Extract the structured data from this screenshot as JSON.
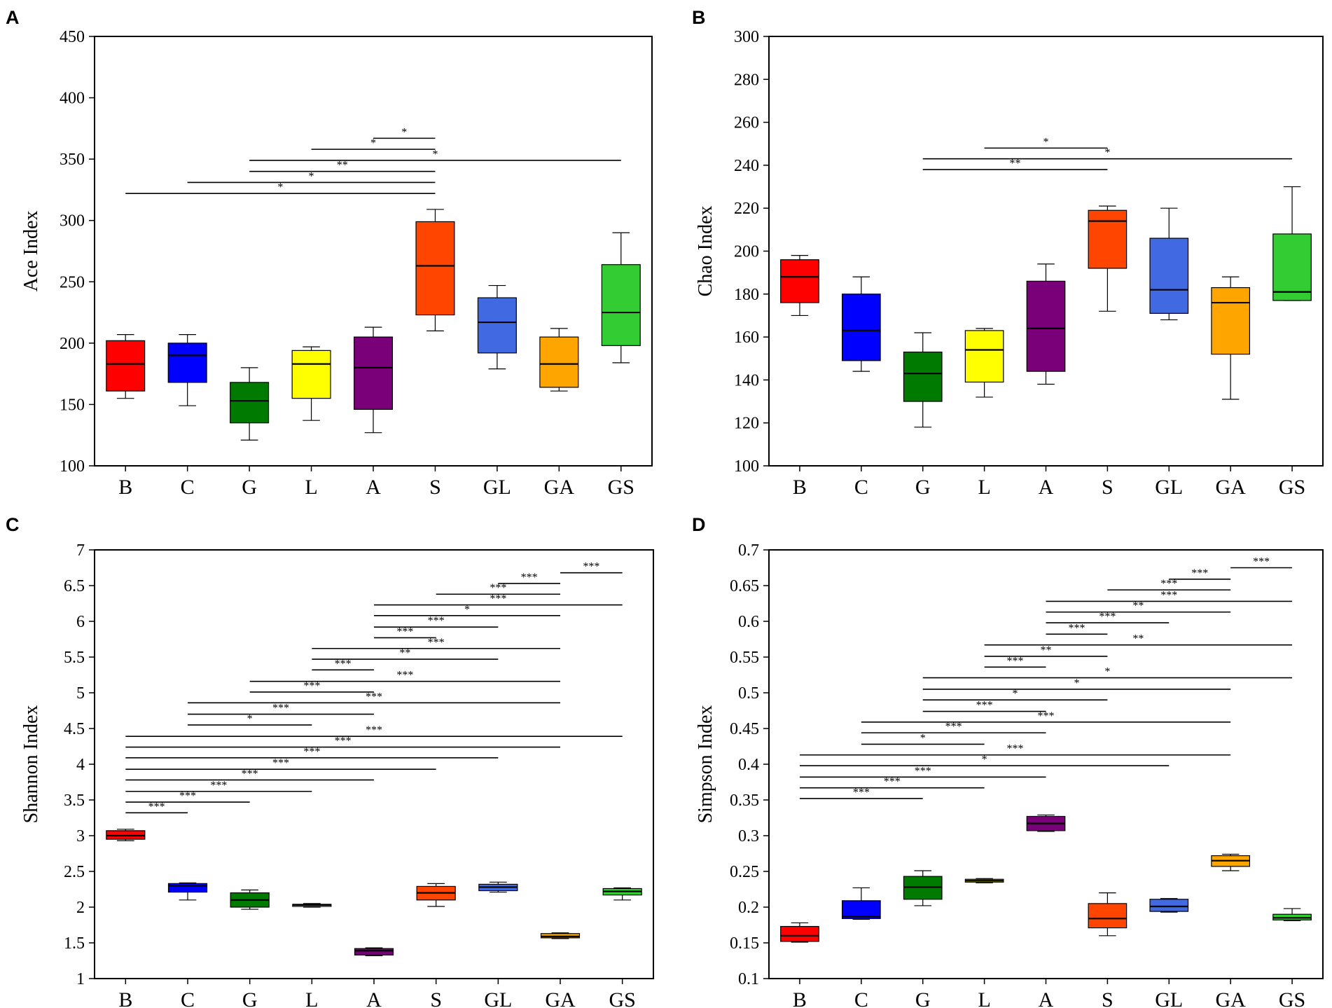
{
  "figure": {
    "panel_colors": {
      "B": "#ff0000",
      "C": "#0000ff",
      "G": "#007a00",
      "L": "#ffff00",
      "A": "#7a007a",
      "S": "#ff4500",
      "GL": "#4169e1",
      "GA": "#ffa500",
      "GS": "#33cc33"
    }
  },
  "chart_data": [
    {
      "panel": "A",
      "type": "box",
      "ylabel": "Ace Index",
      "ylim": [
        100,
        450
      ],
      "yticks": [
        100,
        150,
        200,
        250,
        300,
        350,
        400,
        450
      ],
      "ytick_labels": [
        "100",
        "150",
        "200",
        "250",
        "300",
        "350",
        "400",
        "450"
      ],
      "categories": [
        "B",
        "C",
        "G",
        "L",
        "A",
        "S",
        "GL",
        "GA",
        "GS"
      ],
      "boxes": [
        {
          "min": 155,
          "q1": 161,
          "median": 183,
          "q3": 202,
          "max": 207
        },
        {
          "min": 149,
          "q1": 168,
          "median": 190,
          "q3": 200,
          "max": 207
        },
        {
          "min": 121,
          "q1": 135,
          "median": 153,
          "q3": 168,
          "max": 180
        },
        {
          "min": 137,
          "q1": 155,
          "median": 183,
          "q3": 194,
          "max": 197
        },
        {
          "min": 127,
          "q1": 146,
          "median": 180,
          "q3": 205,
          "max": 213
        },
        {
          "min": 210,
          "q1": 223,
          "median": 263,
          "q3": 299,
          "max": 309
        },
        {
          "min": 179,
          "q1": 192,
          "median": 217,
          "q3": 237,
          "max": 247
        },
        {
          "min": 161,
          "q1": 164,
          "median": 183,
          "q3": 205,
          "max": 212
        },
        {
          "min": 184,
          "q1": 198,
          "median": 225,
          "q3": 264,
          "max": 290
        }
      ],
      "significance": [
        {
          "from": "A",
          "to": "S",
          "label": "*",
          "y": 367
        },
        {
          "from": "L",
          "to": "S",
          "label": "*",
          "y": 358
        },
        {
          "from": "G",
          "to": "GS",
          "label": "*",
          "y": 349
        },
        {
          "from": "G",
          "to": "S",
          "label": "**",
          "y": 340
        },
        {
          "from": "C",
          "to": "S",
          "label": "*",
          "y": 331
        },
        {
          "from": "B",
          "to": "S",
          "label": "*",
          "y": 322
        }
      ]
    },
    {
      "panel": "B",
      "type": "box",
      "ylabel": "Chao Index",
      "ylim": [
        100,
        300
      ],
      "yticks": [
        100,
        120,
        140,
        160,
        180,
        200,
        220,
        240,
        260,
        280,
        300
      ],
      "ytick_labels": [
        "100",
        "120",
        "140",
        "160",
        "180",
        "200",
        "220",
        "240",
        "260",
        "280",
        "300"
      ],
      "categories": [
        "B",
        "C",
        "G",
        "L",
        "A",
        "S",
        "GL",
        "GA",
        "GS"
      ],
      "boxes": [
        {
          "min": 170,
          "q1": 176,
          "median": 188,
          "q3": 196,
          "max": 198
        },
        {
          "min": 144,
          "q1": 149,
          "median": 163,
          "q3": 180,
          "max": 188
        },
        {
          "min": 118,
          "q1": 130,
          "median": 143,
          "q3": 153,
          "max": 162
        },
        {
          "min": 132,
          "q1": 139,
          "median": 154,
          "q3": 163,
          "max": 164
        },
        {
          "min": 138,
          "q1": 144,
          "median": 164,
          "q3": 186,
          "max": 194
        },
        {
          "min": 172,
          "q1": 192,
          "median": 214,
          "q3": 219,
          "max": 221
        },
        {
          "min": 168,
          "q1": 171,
          "median": 182,
          "q3": 206,
          "max": 220
        },
        {
          "min": 131,
          "q1": 152,
          "median": 176,
          "q3": 183,
          "max": 188
        },
        {
          "min": 177,
          "q1": 177,
          "median": 181,
          "q3": 208,
          "max": 230
        }
      ],
      "significance": [
        {
          "from": "L",
          "to": "S",
          "label": "*",
          "y": 248
        },
        {
          "from": "G",
          "to": "GS",
          "label": "*",
          "y": 243
        },
        {
          "from": "G",
          "to": "S",
          "label": "**",
          "y": 238
        }
      ]
    },
    {
      "panel": "C",
      "type": "box",
      "ylabel": "Shannon Index",
      "ylim": [
        1,
        7
      ],
      "yticks": [
        1,
        1.5,
        2,
        2.5,
        3,
        3.5,
        4,
        4.5,
        5,
        5.5,
        6,
        6.5,
        7
      ],
      "ytick_labels": [
        "1",
        "1.5",
        "2",
        "2.5",
        "3",
        "3.5",
        "4",
        "4.5",
        "5",
        "5.5",
        "6",
        "6.5",
        "7"
      ],
      "categories": [
        "B",
        "C",
        "G",
        "L",
        "A",
        "S",
        "GL",
        "GA",
        "GS"
      ],
      "boxes": [
        {
          "min": 2.93,
          "q1": 2.95,
          "median": 3.0,
          "q3": 3.07,
          "max": 3.09
        },
        {
          "min": 2.1,
          "q1": 2.21,
          "median": 2.3,
          "q3": 2.33,
          "max": 2.34
        },
        {
          "min": 1.97,
          "q1": 2.0,
          "median": 2.1,
          "q3": 2.2,
          "max": 2.24
        },
        {
          "min": 2.0,
          "q1": 2.01,
          "median": 2.03,
          "q3": 2.04,
          "max": 2.05
        },
        {
          "min": 1.32,
          "q1": 1.33,
          "median": 1.39,
          "q3": 1.42,
          "max": 1.43
        },
        {
          "min": 2.01,
          "q1": 2.1,
          "median": 2.2,
          "q3": 2.29,
          "max": 2.33
        },
        {
          "min": 2.21,
          "q1": 2.23,
          "median": 2.28,
          "q3": 2.32,
          "max": 2.35
        },
        {
          "min": 1.56,
          "q1": 1.57,
          "median": 1.59,
          "q3": 1.63,
          "max": 1.64
        },
        {
          "min": 2.1,
          "q1": 2.17,
          "median": 2.22,
          "q3": 2.26,
          "max": 2.27
        }
      ],
      "significance": [
        {
          "from": "GA",
          "to": "GS",
          "label": "***",
          "y": 6.68
        },
        {
          "from": "GL",
          "to": "GA",
          "label": "***",
          "y": 6.53
        },
        {
          "from": "S",
          "to": "GA",
          "label": "***",
          "y": 6.38
        },
        {
          "from": "A",
          "to": "GS",
          "label": "***",
          "y": 6.23
        },
        {
          "from": "A",
          "to": "GA",
          "label": "*",
          "y": 6.08
        },
        {
          "from": "A",
          "to": "GL",
          "label": "***",
          "y": 5.92
        },
        {
          "from": "A",
          "to": "S",
          "label": "***",
          "y": 5.77
        },
        {
          "from": "L",
          "to": "GA",
          "label": "***",
          "y": 5.62
        },
        {
          "from": "L",
          "to": "GL",
          "label": "**",
          "y": 5.47
        },
        {
          "from": "L",
          "to": "A",
          "label": "***",
          "y": 5.32
        },
        {
          "from": "G",
          "to": "GA",
          "label": "***",
          "y": 5.16
        },
        {
          "from": "G",
          "to": "A",
          "label": "***",
          "y": 5.01
        },
        {
          "from": "C",
          "to": "GA",
          "label": "***",
          "y": 4.86
        },
        {
          "from": "C",
          "to": "A",
          "label": "***",
          "y": 4.7
        },
        {
          "from": "C",
          "to": "L",
          "label": "*",
          "y": 4.55
        },
        {
          "from": "B",
          "to": "GS",
          "label": "***",
          "y": 4.39
        },
        {
          "from": "B",
          "to": "GA",
          "label": "***",
          "y": 4.24
        },
        {
          "from": "B",
          "to": "GL",
          "label": "***",
          "y": 4.09
        },
        {
          "from": "B",
          "to": "S",
          "label": "***",
          "y": 3.93
        },
        {
          "from": "B",
          "to": "A",
          "label": "***",
          "y": 3.78
        },
        {
          "from": "B",
          "to": "L",
          "label": "***",
          "y": 3.62
        },
        {
          "from": "B",
          "to": "G",
          "label": "***",
          "y": 3.47
        },
        {
          "from": "B",
          "to": "C",
          "label": "***",
          "y": 3.32
        }
      ]
    },
    {
      "panel": "D",
      "type": "box",
      "ylabel": "Simpson Index",
      "ylim": [
        0.1,
        0.7
      ],
      "yticks": [
        0.1,
        0.15,
        0.2,
        0.25,
        0.3,
        0.35,
        0.4,
        0.45,
        0.5,
        0.55,
        0.6,
        0.65,
        0.7
      ],
      "ytick_labels": [
        "0.1",
        "0.15",
        "0.2",
        "0.25",
        "0.3",
        "0.35",
        "0.4",
        "0.45",
        "0.5",
        "0.55",
        "0.6",
        "0.65",
        "0.7"
      ],
      "categories": [
        "B",
        "C",
        "G",
        "L",
        "A",
        "S",
        "GL",
        "GA",
        "GS"
      ],
      "boxes": [
        {
          "min": 0.151,
          "q1": 0.152,
          "median": 0.16,
          "q3": 0.173,
          "max": 0.178
        },
        {
          "min": 0.183,
          "q1": 0.184,
          "median": 0.187,
          "q3": 0.209,
          "max": 0.227
        },
        {
          "min": 0.202,
          "q1": 0.211,
          "median": 0.228,
          "q3": 0.243,
          "max": 0.251
        },
        {
          "min": 0.234,
          "q1": 0.235,
          "median": 0.237,
          "q3": 0.239,
          "max": 0.24
        },
        {
          "min": 0.306,
          "q1": 0.307,
          "median": 0.317,
          "q3": 0.327,
          "max": 0.329
        },
        {
          "min": 0.16,
          "q1": 0.171,
          "median": 0.184,
          "q3": 0.205,
          "max": 0.22
        },
        {
          "min": 0.193,
          "q1": 0.194,
          "median": 0.201,
          "q3": 0.211,
          "max": 0.212
        },
        {
          "min": 0.251,
          "q1": 0.257,
          "median": 0.265,
          "q3": 0.272,
          "max": 0.274
        },
        {
          "min": 0.181,
          "q1": 0.182,
          "median": 0.185,
          "q3": 0.19,
          "max": 0.198
        }
      ],
      "significance": [
        {
          "from": "GA",
          "to": "GS",
          "label": "***",
          "y": 0.675
        },
        {
          "from": "GL",
          "to": "GA",
          "label": "***",
          "y": 0.659
        },
        {
          "from": "S",
          "to": "GA",
          "label": "***",
          "y": 0.644
        },
        {
          "from": "A",
          "to": "GS",
          "label": "***",
          "y": 0.628
        },
        {
          "from": "A",
          "to": "GA",
          "label": "**",
          "y": 0.613
        },
        {
          "from": "A",
          "to": "GL",
          "label": "***",
          "y": 0.598
        },
        {
          "from": "A",
          "to": "S",
          "label": "***",
          "y": 0.582
        },
        {
          "from": "L",
          "to": "GS",
          "label": "**",
          "y": 0.567
        },
        {
          "from": "L",
          "to": "S",
          "label": "**",
          "y": 0.551
        },
        {
          "from": "L",
          "to": "A",
          "label": "***",
          "y": 0.536
        },
        {
          "from": "G",
          "to": "GS",
          "label": "*",
          "y": 0.521
        },
        {
          "from": "G",
          "to": "GA",
          "label": "*",
          "y": 0.505
        },
        {
          "from": "G",
          "to": "S",
          "label": "*",
          "y": 0.49
        },
        {
          "from": "G",
          "to": "A",
          "label": "***",
          "y": 0.474
        },
        {
          "from": "C",
          "to": "GA",
          "label": "***",
          "y": 0.459
        },
        {
          "from": "C",
          "to": "A",
          "label": "***",
          "y": 0.444
        },
        {
          "from": "C",
          "to": "L",
          "label": "*",
          "y": 0.428
        },
        {
          "from": "B",
          "to": "GA",
          "label": "***",
          "y": 0.413
        },
        {
          "from": "B",
          "to": "GL",
          "label": "*",
          "y": 0.398
        },
        {
          "from": "B",
          "to": "A",
          "label": "***",
          "y": 0.382
        },
        {
          "from": "B",
          "to": "L",
          "label": "***",
          "y": 0.367
        },
        {
          "from": "B",
          "to": "G",
          "label": "***",
          "y": 0.352
        }
      ]
    }
  ]
}
